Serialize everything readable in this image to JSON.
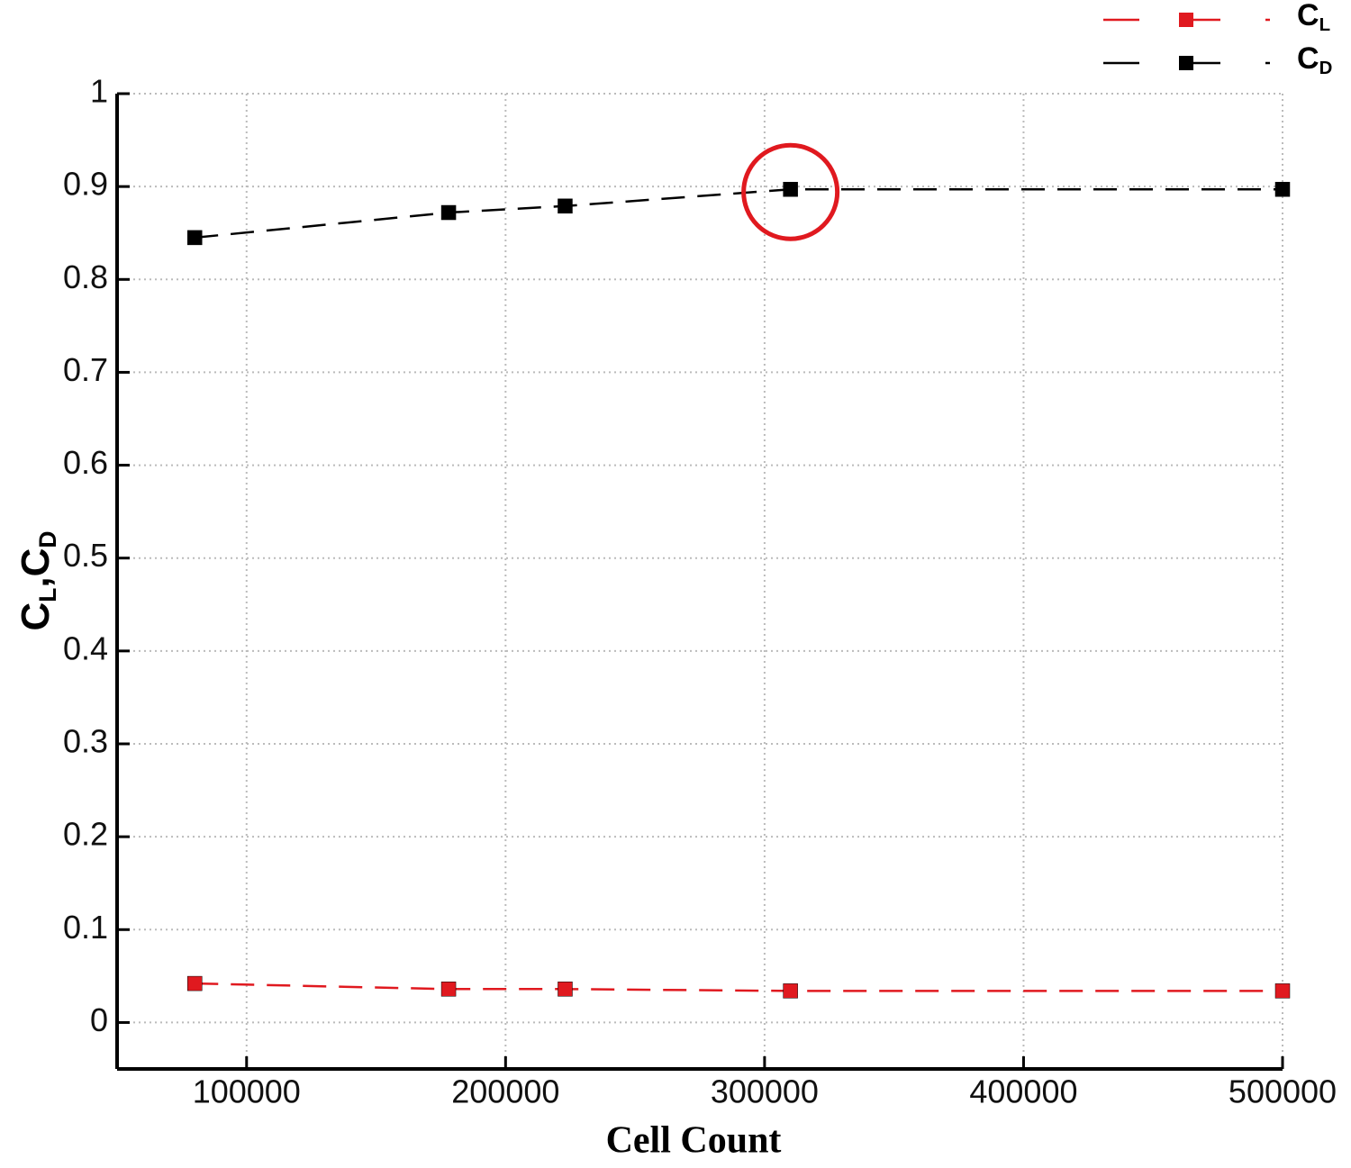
{
  "chart_data": {
    "type": "line",
    "xlabel": "Cell Count",
    "ylabel": "CL,CD",
    "x": [
      80000,
      178000,
      223000,
      310000,
      500000
    ],
    "series": [
      {
        "name": "CL",
        "color": "#e0191f",
        "values": [
          0.042,
          0.036,
          0.036,
          0.034,
          0.034
        ]
      },
      {
        "name": "CD",
        "color": "#000000",
        "values": [
          0.845,
          0.872,
          0.879,
          0.897,
          0.897
        ]
      }
    ],
    "xlim": [
      50000,
      500000
    ],
    "xticks": [
      100000,
      200000,
      300000,
      400000,
      500000
    ],
    "ylim": [
      -0.05,
      1
    ],
    "yticks": [
      0,
      0.1,
      0.2,
      0.3,
      0.4,
      0.5,
      0.6,
      0.7,
      0.8,
      0.9,
      1
    ],
    "grid": true,
    "legend": "top-right"
  }
}
